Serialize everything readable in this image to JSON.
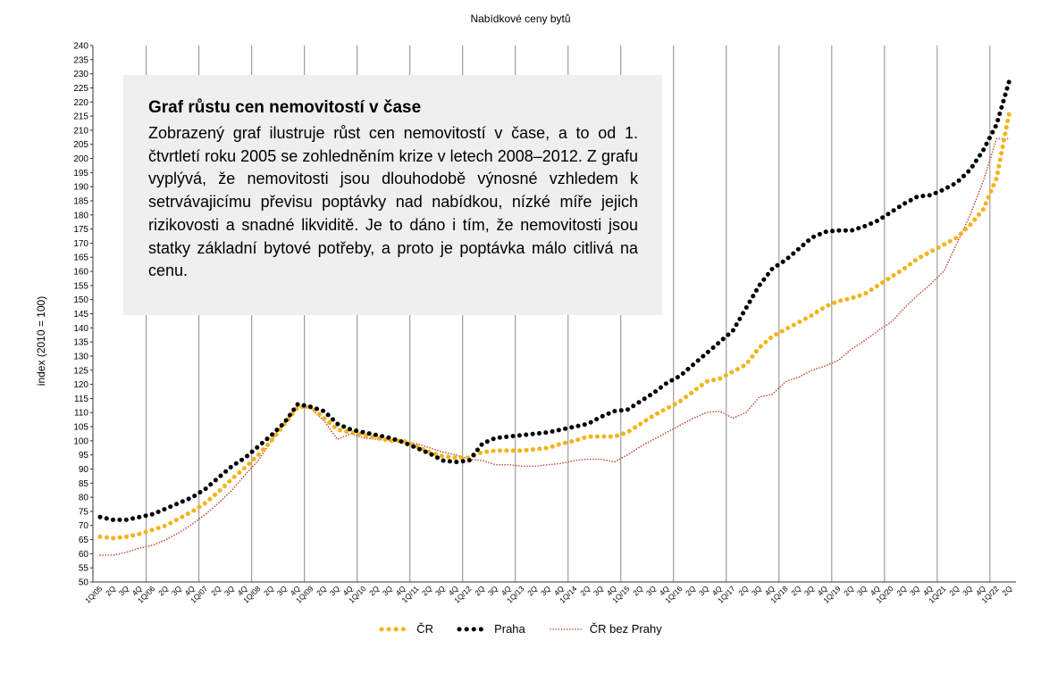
{
  "chart_data": {
    "type": "line",
    "title": "Nabídkové ceny bytů",
    "ylabel": "index (2010 = 100)",
    "xlabel": "",
    "ylim": [
      50,
      240
    ],
    "ytick_step": 5,
    "grid": "vertical lines at each first quarter",
    "legend_position": "bottom-center",
    "categories": [
      "1Q/05",
      "2Q",
      "3Q",
      "4Q",
      "1Q/06",
      "2Q",
      "3Q",
      "4Q",
      "1Q/07",
      "2Q",
      "3Q",
      "4Q",
      "1Q/08",
      "2Q",
      "3Q",
      "4Q",
      "1Q/09",
      "2Q",
      "3Q",
      "4Q",
      "1Q/10",
      "2Q",
      "3Q",
      "4Q",
      "1Q/11",
      "2Q",
      "3Q",
      "4Q",
      "1Q/12",
      "2Q",
      "3Q",
      "4Q",
      "1Q/13",
      "2Q",
      "3Q",
      "4Q",
      "1Q/14",
      "2Q",
      "3Q",
      "4Q",
      "1Q/15",
      "2Q",
      "3Q",
      "4Q",
      "1Q/16",
      "2Q",
      "3Q",
      "4Q",
      "1Q/17",
      "2Q",
      "3Q",
      "4Q",
      "1Q/18",
      "2Q",
      "3Q",
      "4Q",
      "1Q/19",
      "2Q",
      "3Q",
      "4Q",
      "1Q/20",
      "2Q",
      "3Q",
      "4Q",
      "1Q/21",
      "2Q",
      "3Q",
      "4Q",
      "1Q/22",
      "2Q"
    ],
    "series": [
      {
        "name": "ČR",
        "color": "#f2b417",
        "style": "dotted-bold",
        "values": [
          66,
          65.5,
          66,
          67,
          68.5,
          70,
          72.5,
          75,
          78,
          82,
          86.5,
          90.5,
          95,
          100,
          106,
          112,
          112,
          108,
          104,
          103,
          102,
          101,
          100,
          100,
          98,
          96,
          94.5,
          94,
          94,
          96,
          96.5,
          96.5,
          96.5,
          97,
          97.5,
          99,
          100,
          101.5,
          101.5,
          101.5,
          103,
          106,
          109,
          111.5,
          114,
          117.5,
          121,
          122,
          124.5,
          127,
          133,
          137,
          139.5,
          142,
          144.5,
          147.5,
          149.5,
          150.5,
          152,
          155,
          158,
          161,
          164.5,
          167,
          169.5,
          172,
          176.5,
          182,
          193,
          217
        ]
      },
      {
        "name": "Praha",
        "color": "#000000",
        "style": "dotted-bold",
        "values": [
          73,
          72,
          72,
          73,
          74,
          76,
          78,
          80,
          83,
          87,
          91,
          94,
          98,
          102,
          106.5,
          113,
          112,
          110.5,
          106,
          104,
          103,
          102,
          101,
          99.5,
          97.5,
          95.5,
          93,
          92.5,
          93,
          99,
          101,
          101.5,
          102,
          102.5,
          103,
          104,
          105,
          106,
          108.5,
          110.5,
          111,
          114,
          117,
          120.5,
          123,
          127,
          131,
          135,
          139,
          147,
          155,
          161,
          164,
          168,
          172,
          174,
          174.5,
          174.5,
          176,
          178,
          181,
          184,
          186.5,
          187,
          189,
          191.5,
          196,
          203,
          212,
          228
        ]
      },
      {
        "name": "ČR bez Prahy",
        "color": "#c44a3c",
        "style": "dotted-thin",
        "values": [
          59.5,
          59.5,
          60.5,
          62,
          63,
          65,
          67.5,
          70.5,
          74,
          78,
          82.5,
          88,
          93,
          100,
          107,
          112,
          111.5,
          107,
          100.5,
          102.5,
          101,
          100.5,
          100,
          99.5,
          99,
          97.5,
          96,
          95,
          93.5,
          93,
          91.5,
          91.5,
          91,
          91,
          91.5,
          92,
          93,
          93.5,
          93.5,
          92.5,
          95,
          98,
          100.5,
          103,
          105.5,
          108,
          110,
          110.5,
          108,
          110,
          115.5,
          116.5,
          121,
          122.5,
          125,
          126.5,
          128.5,
          132.5,
          135.5,
          139,
          142,
          147,
          151.5,
          155.5,
          160,
          170,
          180,
          192,
          207,
          207
        ]
      }
    ]
  }
}
